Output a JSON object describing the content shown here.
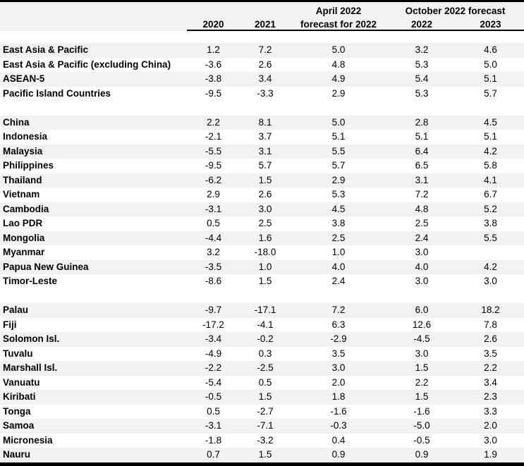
{
  "header": {
    "april_line1": "April 2022",
    "april_line2": "forecast for 2022",
    "october_group": "October 2022 forecast",
    "col_2020": "2020",
    "col_2021": "2021",
    "col_oct_2022": "2022",
    "col_oct_2023": "2023"
  },
  "colors": {
    "row_shade": "#f2f2f2",
    "header_bg": "#f2f2f2",
    "rule": "#000000"
  },
  "chart_data": {
    "type": "table",
    "columns": [
      "",
      "2020",
      "2021",
      "April 2022 forecast for 2022",
      "October 2022 forecast 2022",
      "October 2022 forecast 2023"
    ],
    "sections": [
      {
        "rows": [
          [
            "East Asia & Pacific",
            "1.2",
            "7.2",
            "5.0",
            "3.2",
            "4.6"
          ],
          [
            "East Asia & Pacific (excluding China)",
            "-3.6",
            "2.6",
            "4.8",
            "5.3",
            "5.0"
          ],
          [
            "ASEAN-5",
            "-3.8",
            "3.4",
            "4.9",
            "5.4",
            "5.1"
          ],
          [
            "Pacific Island Countries",
            "-9.5",
            "-3.3",
            "2.9",
            "5.3",
            "5.7"
          ]
        ]
      },
      {
        "rows": [
          [
            "China",
            "2.2",
            "8.1",
            "5.0",
            "2.8",
            "4.5"
          ],
          [
            "Indonesia",
            "-2.1",
            "3.7",
            "5.1",
            "5.1",
            "5.1"
          ],
          [
            "Malaysia",
            "-5.5",
            "3.1",
            "5.5",
            "6.4",
            "4.2"
          ],
          [
            "Philippines",
            "-9.5",
            "5.7",
            "5.7",
            "6.5",
            "5.8"
          ],
          [
            "Thailand",
            "-6.2",
            "1.5",
            "2.9",
            "3.1",
            "4.1"
          ],
          [
            "Vietnam",
            "2.9",
            "2.6",
            "5.3",
            "7.2",
            "6.7"
          ],
          [
            "Cambodia",
            "-3.1",
            "3.0",
            "4.5",
            "4.8",
            "5.2"
          ],
          [
            "Lao PDR",
            "0.5",
            "2.5",
            "3.8",
            "2.5",
            "3.8"
          ],
          [
            "Mongolia",
            "-4.4",
            "1.6",
            "2.5",
            "2.4",
            "5.5"
          ],
          [
            "Myanmar",
            "3.2",
            "-18.0",
            "1.0",
            "3.0",
            ""
          ],
          [
            "Papua New Guinea",
            "-3.5",
            "1.0",
            "4.0",
            "4.0",
            "4.2"
          ],
          [
            "Timor-Leste",
            "-8.6",
            "1.5",
            "2.4",
            "3.0",
            "3.0"
          ]
        ]
      },
      {
        "rows": [
          [
            "Palau",
            "-9.7",
            "-17.1",
            "7.2",
            "6.0",
            "18.2"
          ],
          [
            "Fiji",
            "-17.2",
            "-4.1",
            "6.3",
            "12.6",
            "7.8"
          ],
          [
            "Solomon Isl.",
            "-3.4",
            "-0.2",
            "-2.9",
            "-4.5",
            "2.6"
          ],
          [
            "Tuvalu",
            "-4.9",
            "0.3",
            "3.5",
            "3.0",
            "3.5"
          ],
          [
            "Marshall Isl.",
            "-2.2",
            "-2.5",
            "3.0",
            "1.5",
            "2.2"
          ],
          [
            "Vanuatu",
            "-5.4",
            "0.5",
            "2.0",
            "2.2",
            "3.4"
          ],
          [
            "Kiribati",
            "-0.5",
            "1.5",
            "1.8",
            "1.5",
            "2.3"
          ],
          [
            "Tonga",
            "0.5",
            "-2.7",
            "-1.6",
            "-1.6",
            "3.3"
          ],
          [
            "Samoa",
            "-3.1",
            "-7.1",
            "-0.3",
            "-5.0",
            "2.0"
          ],
          [
            "Micronesia",
            "-1.8",
            "-3.2",
            "0.4",
            "-0.5",
            "3.0"
          ],
          [
            "Nauru",
            "0.7",
            "1.5",
            "0.9",
            "0.9",
            "1.9"
          ]
        ]
      }
    ]
  }
}
